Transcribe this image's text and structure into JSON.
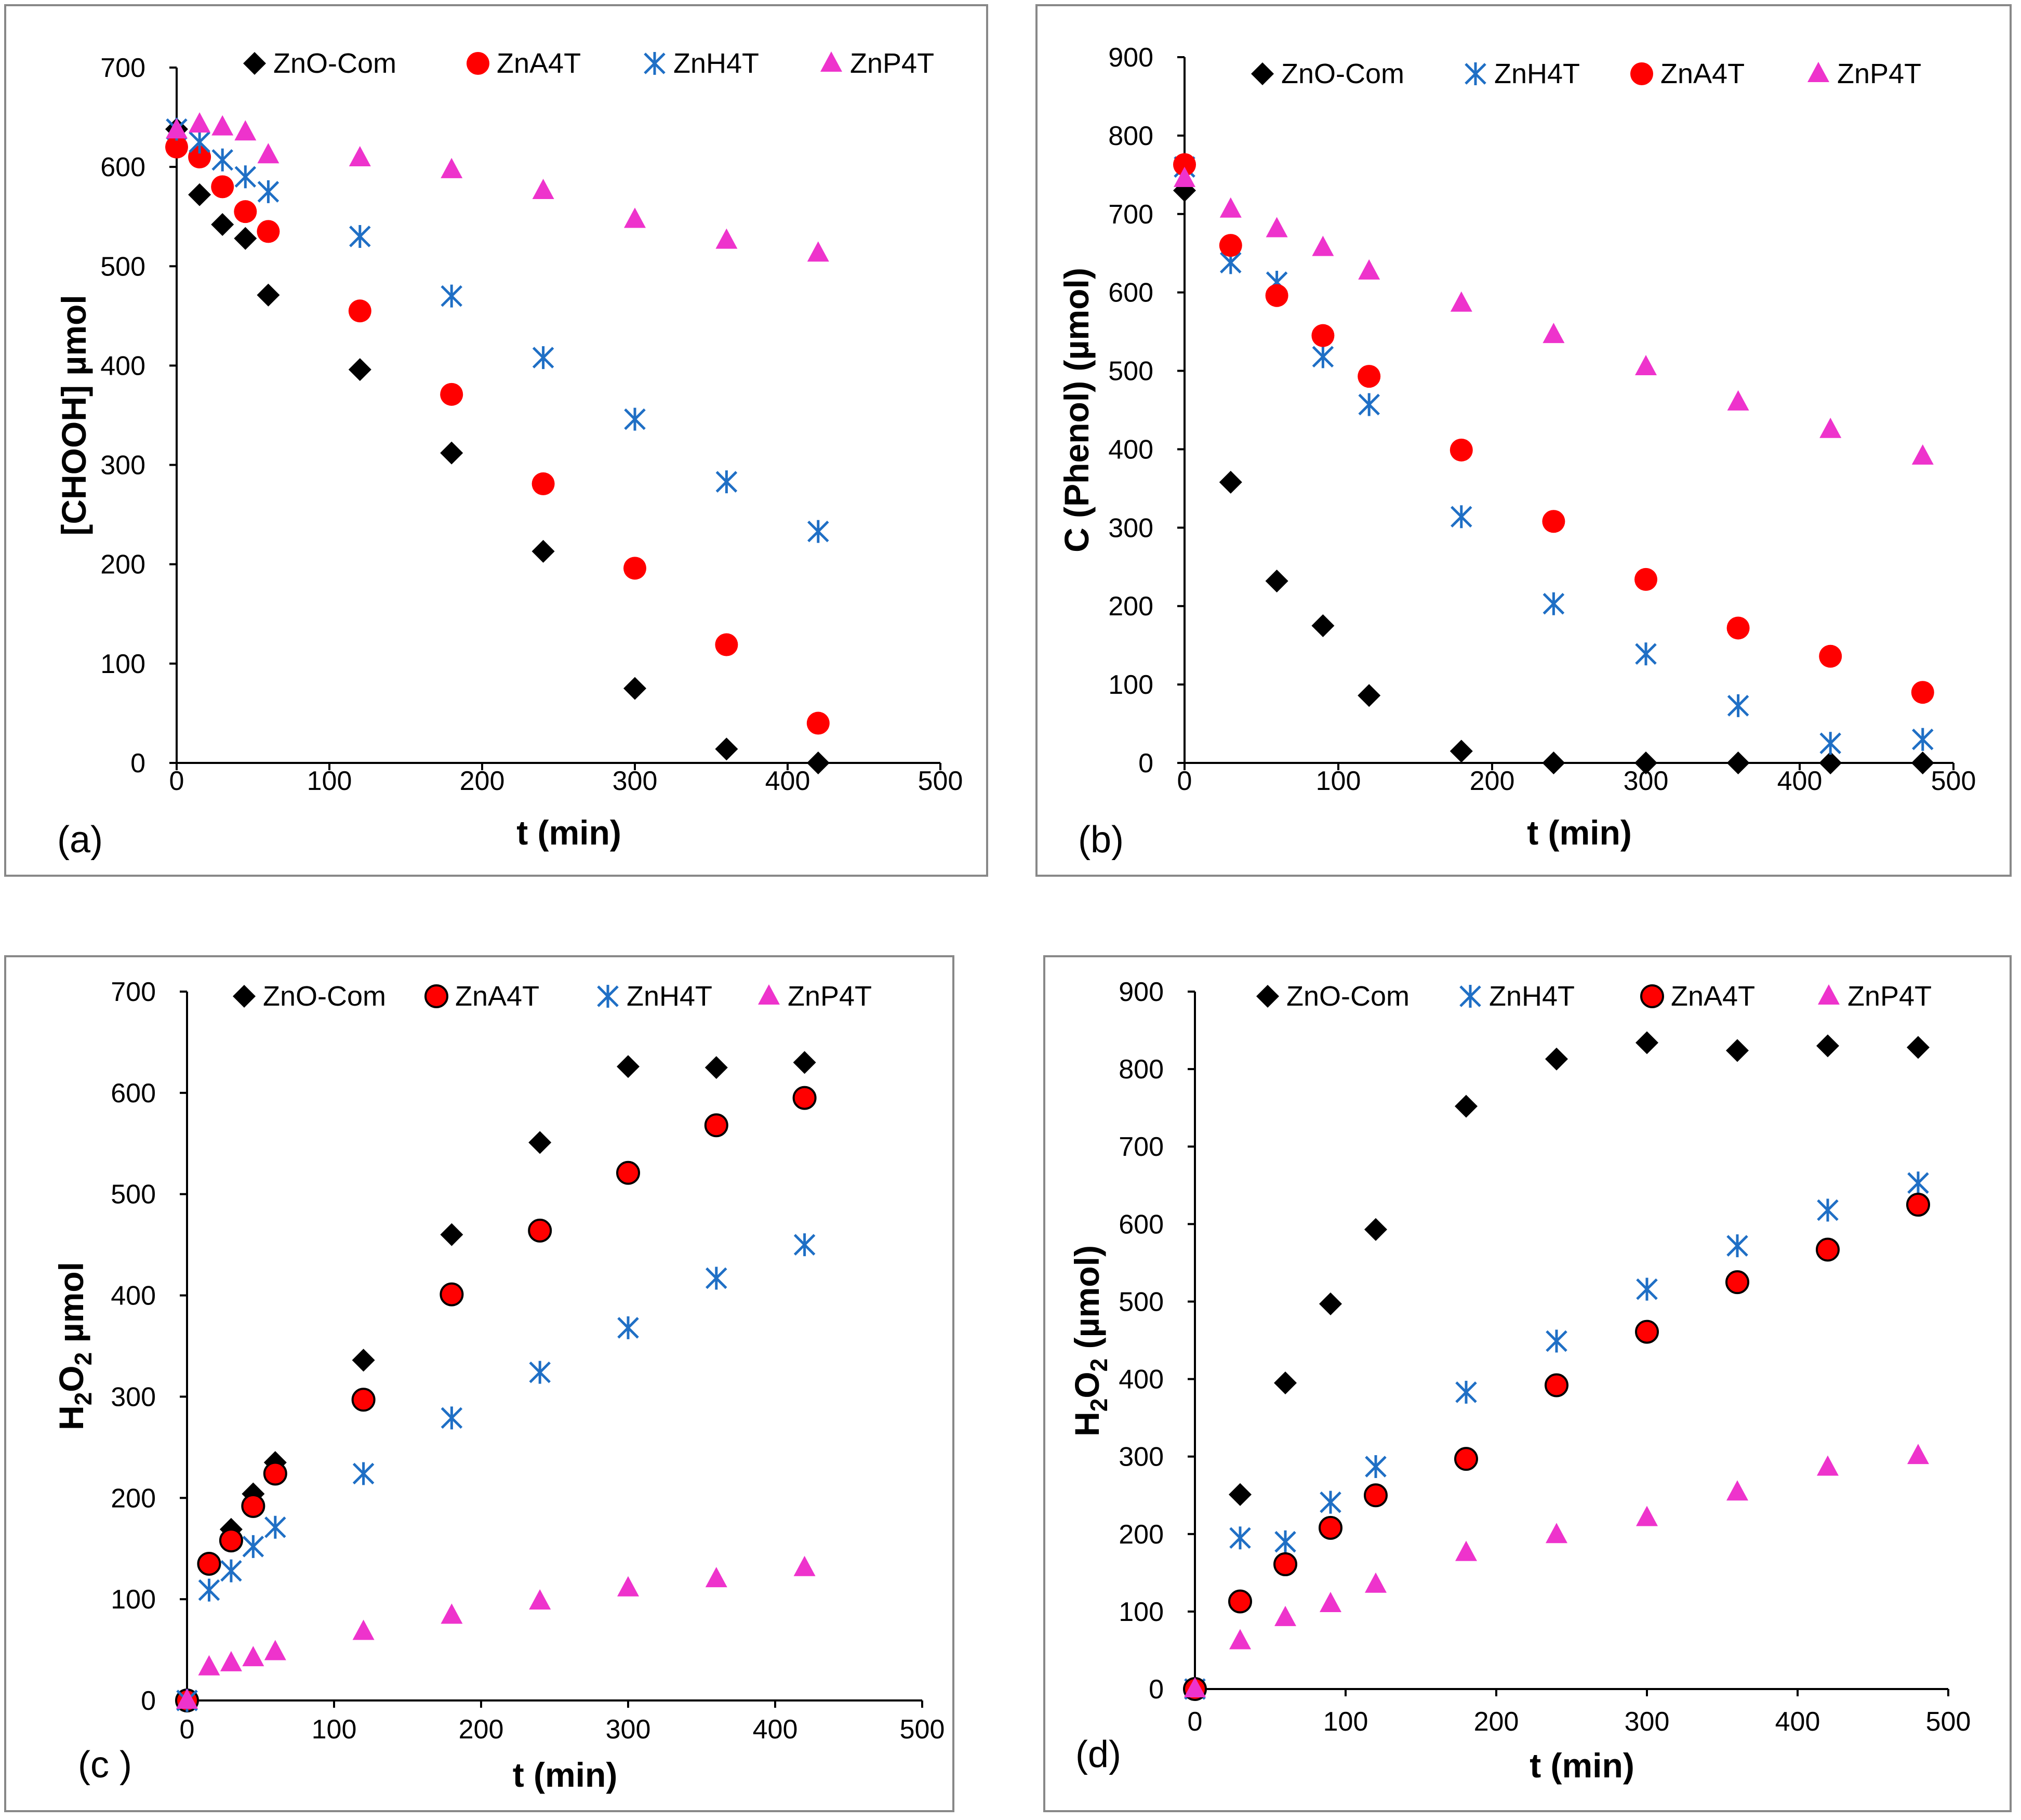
{
  "colors": {
    "ZnO-Com": "#000000",
    "ZnA4T": "#ff0000",
    "ZnH4T": "#1f6fc5",
    "ZnP4T": "#ee33cc"
  },
  "chart_data": [
    {
      "type": "scatter",
      "panel_label": "(a)",
      "xlabel": "t (min)",
      "ylabel": "[CHOOH] µmol",
      "xlim": [
        0,
        500
      ],
      "ylim": [
        0,
        700
      ],
      "xticks": [
        "0",
        "100",
        "200",
        "300",
        "400",
        "500"
      ],
      "yticks": [
        "0",
        "100",
        "200",
        "300",
        "400",
        "500",
        "600",
        "700"
      ],
      "legend": [
        "ZnO-Com",
        "ZnA4T",
        "ZnH4T",
        "ZnP4T"
      ],
      "series": [
        {
          "name": "ZnO-Com",
          "marker": "diamond",
          "x": [
            0,
            15,
            30,
            45,
            60,
            120,
            180,
            240,
            300,
            360,
            420
          ],
          "y": [
            638,
            572,
            542,
            528,
            471,
            396,
            312,
            213,
            75,
            14,
            0
          ]
        },
        {
          "name": "ZnA4T",
          "marker": "circle",
          "x": [
            0,
            15,
            30,
            45,
            60,
            120,
            180,
            240,
            300,
            360,
            420
          ],
          "y": [
            620,
            610,
            580,
            555,
            535,
            455,
            371,
            281,
            196,
            119,
            40
          ]
        },
        {
          "name": "ZnH4T",
          "marker": "asterisk",
          "x": [
            0,
            15,
            30,
            45,
            60,
            120,
            180,
            240,
            300,
            360,
            420
          ],
          "y": [
            638,
            625,
            607,
            590,
            575,
            530,
            470,
            408,
            346,
            283,
            233
          ]
        },
        {
          "name": "ZnP4T",
          "marker": "triangle",
          "x": [
            0,
            15,
            30,
            45,
            60,
            120,
            180,
            240,
            300,
            360,
            420
          ],
          "y": [
            637,
            643,
            640,
            635,
            612,
            609,
            597,
            576,
            547,
            526,
            513
          ]
        }
      ]
    },
    {
      "type": "scatter",
      "panel_label": "(b)",
      "xlabel": "t (min)",
      "ylabel": "C (Phenol) (µmol)",
      "xlim": [
        0,
        500
      ],
      "ylim": [
        0,
        900
      ],
      "xticks": [
        "0",
        "100",
        "200",
        "300",
        "400",
        "500"
      ],
      "yticks": [
        "0",
        "100",
        "200",
        "300",
        "400",
        "500",
        "600",
        "700",
        "800",
        "900"
      ],
      "legend": [
        "ZnO-Com",
        "ZnH4T",
        "ZnA4T",
        "ZnP4T"
      ],
      "series": [
        {
          "name": "ZnO-Com",
          "marker": "diamond",
          "x": [
            0,
            30,
            60,
            90,
            120,
            180,
            240,
            300,
            360,
            420,
            480
          ],
          "y": [
            730,
            358,
            232,
            175,
            86,
            15,
            0,
            0,
            0,
            0,
            0
          ]
        },
        {
          "name": "ZnH4T",
          "marker": "asterisk",
          "x": [
            0,
            30,
            60,
            90,
            120,
            180,
            240,
            300,
            360,
            420,
            480
          ],
          "y": [
            760,
            638,
            613,
            518,
            457,
            314,
            203,
            139,
            73,
            25,
            30
          ]
        },
        {
          "name": "ZnA4T",
          "marker": "circle",
          "x": [
            0,
            30,
            60,
            90,
            120,
            180,
            240,
            300,
            360,
            420,
            480
          ],
          "y": [
            763,
            660,
            596,
            545,
            493,
            399,
            308,
            234,
            172,
            136,
            90
          ]
        },
        {
          "name": "ZnP4T",
          "marker": "triangle",
          "x": [
            0,
            30,
            60,
            90,
            120,
            180,
            240,
            300,
            360,
            420,
            480
          ],
          "y": [
            745,
            706,
            681,
            657,
            627,
            586,
            546,
            505,
            460,
            425,
            391
          ]
        }
      ]
    },
    {
      "type": "scatter",
      "panel_label": "(c )",
      "xlabel": "t (min)",
      "ylabel_main": "H",
      "ylabel_sub1": "2",
      "ylabel_mid": "O",
      "ylabel_sub2": "2",
      "ylabel_tail": " µmol",
      "xlim": [
        0,
        500
      ],
      "ylim": [
        0,
        700
      ],
      "xticks": [
        "0",
        "100",
        "200",
        "300",
        "400",
        "500"
      ],
      "yticks": [
        "0",
        "100",
        "200",
        "300",
        "400",
        "500",
        "600",
        "700"
      ],
      "legend": [
        "ZnO-Com",
        "ZnA4T",
        "ZnH4T",
        "ZnP4T"
      ],
      "series": [
        {
          "name": "ZnO-Com",
          "marker": "diamond",
          "x": [
            0,
            15,
            30,
            45,
            60,
            120,
            180,
            240,
            300,
            360,
            420
          ],
          "y": [
            0,
            135,
            169,
            204,
            235,
            336,
            460,
            551,
            626,
            625,
            630
          ]
        },
        {
          "name": "ZnA4T",
          "marker": "circle-outlined",
          "x": [
            0,
            15,
            30,
            45,
            60,
            120,
            180,
            240,
            300,
            360,
            420
          ],
          "y": [
            0,
            135,
            158,
            192,
            224,
            297,
            401,
            464,
            521,
            568,
            595
          ]
        },
        {
          "name": "ZnH4T",
          "marker": "asterisk",
          "x": [
            0,
            15,
            30,
            45,
            60,
            120,
            180,
            240,
            300,
            360,
            420
          ],
          "y": [
            0,
            109,
            128,
            152,
            171,
            224,
            279,
            324,
            368,
            417,
            450
          ]
        },
        {
          "name": "ZnP4T",
          "marker": "triangle",
          "x": [
            0,
            15,
            30,
            45,
            60,
            120,
            180,
            240,
            300,
            360,
            420
          ],
          "y": [
            0,
            33,
            37,
            42,
            48,
            68,
            84,
            98,
            111,
            120,
            131
          ]
        }
      ]
    },
    {
      "type": "scatter",
      "panel_label": "(d)",
      "xlabel": "t (min)",
      "ylabel_main": "H",
      "ylabel_sub1": "2",
      "ylabel_mid": "O",
      "ylabel_sub2": "2",
      "ylabel_tail": " (µmol)",
      "xlim": [
        0,
        500
      ],
      "ylim": [
        0,
        900
      ],
      "xticks": [
        "0",
        "100",
        "200",
        "300",
        "400",
        "500"
      ],
      "yticks": [
        "0",
        "100",
        "200",
        "300",
        "400",
        "500",
        "600",
        "700",
        "800",
        "900"
      ],
      "legend": [
        "ZnO-Com",
        "ZnH4T",
        "ZnA4T",
        "ZnP4T"
      ],
      "series": [
        {
          "name": "ZnO-Com",
          "marker": "diamond",
          "x": [
            0,
            30,
            60,
            90,
            120,
            180,
            240,
            300,
            360,
            420,
            480
          ],
          "y": [
            0,
            251,
            395,
            497,
            593,
            752,
            813,
            834,
            824,
            830,
            828
          ]
        },
        {
          "name": "ZnH4T",
          "marker": "asterisk",
          "x": [
            0,
            30,
            60,
            90,
            120,
            180,
            240,
            300,
            360,
            420,
            480
          ],
          "y": [
            0,
            195,
            190,
            241,
            287,
            383,
            449,
            516,
            572,
            618,
            653
          ]
        },
        {
          "name": "ZnA4T",
          "marker": "circle-outlined",
          "x": [
            0,
            30,
            60,
            90,
            120,
            180,
            240,
            300,
            360,
            420,
            480
          ],
          "y": [
            0,
            113,
            161,
            208,
            250,
            297,
            392,
            461,
            525,
            567,
            625
          ]
        },
        {
          "name": "ZnP4T",
          "marker": "triangle",
          "x": [
            0,
            30,
            60,
            90,
            120,
            180,
            240,
            300,
            360,
            420,
            480
          ],
          "y": [
            0,
            62,
            92,
            110,
            135,
            176,
            199,
            221,
            254,
            286,
            301
          ]
        }
      ]
    }
  ]
}
